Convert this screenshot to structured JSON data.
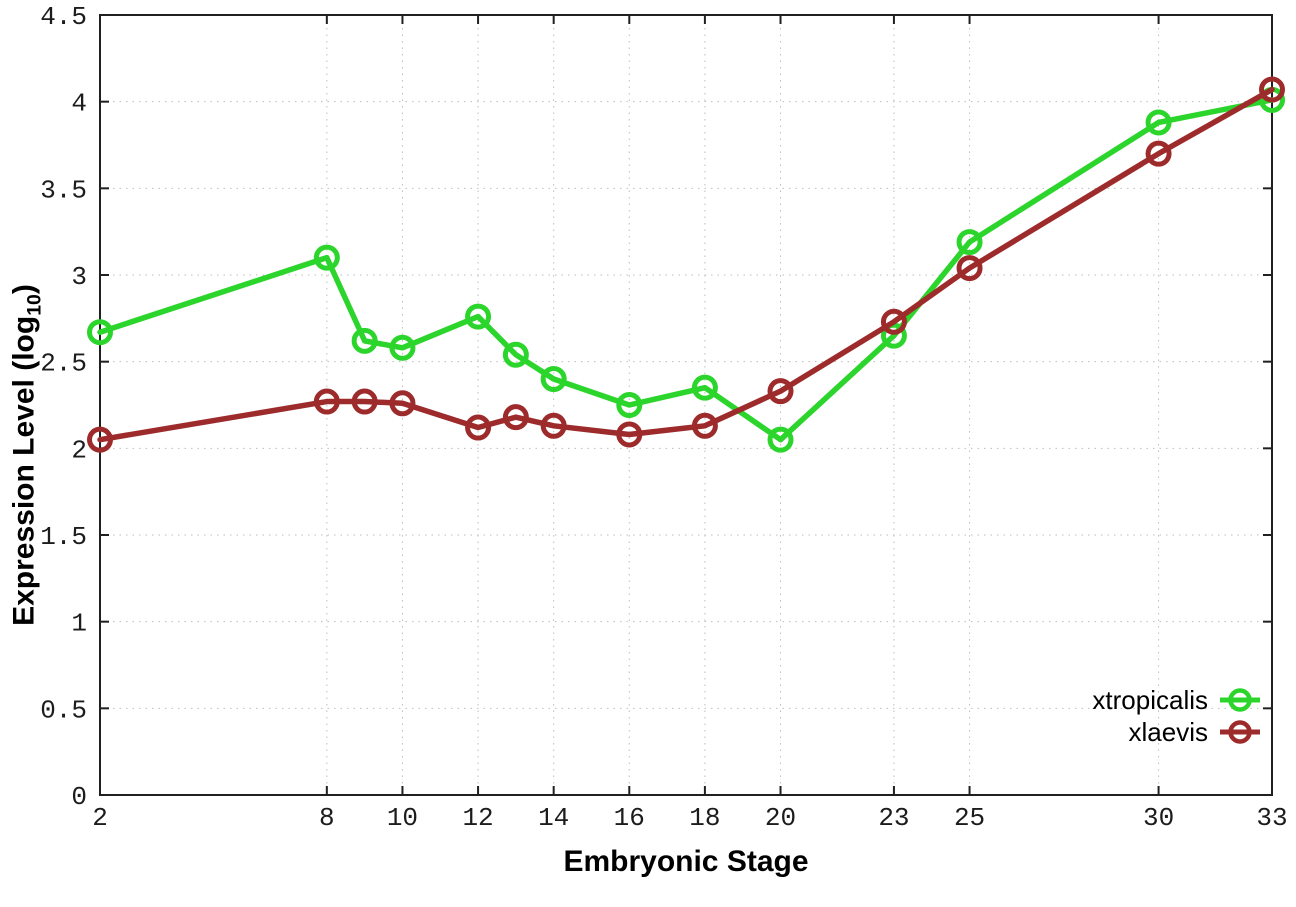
{
  "chart_data": {
    "type": "line",
    "title": "",
    "xlabel": "Embryonic Stage",
    "ylabel_prefix": "Expression Level (log",
    "ylabel_sub": "10",
    "ylabel_suffix": ")",
    "x": [
      2,
      8,
      9,
      10,
      12,
      13,
      14,
      16,
      18,
      20,
      23,
      25,
      30,
      33
    ],
    "xticks": [
      2,
      8,
      10,
      12,
      14,
      16,
      18,
      20,
      23,
      25,
      30,
      33
    ],
    "yticks": [
      0,
      0.5,
      1,
      1.5,
      2,
      2.5,
      3,
      3.5,
      4,
      4.5
    ],
    "xlim": [
      2,
      33
    ],
    "ylim": [
      0,
      4.5
    ],
    "grid": true,
    "legend_position": "bottom-right",
    "series": [
      {
        "name": "xtropicalis",
        "color": "#2bd52b",
        "marker": "open-circle",
        "values": [
          2.67,
          3.1,
          2.62,
          2.58,
          2.76,
          2.54,
          2.4,
          2.25,
          2.35,
          2.05,
          2.65,
          3.19,
          3.88,
          4.01
        ]
      },
      {
        "name": "xlaevis",
        "color": "#9e2b2b",
        "marker": "open-circle",
        "values": [
          2.05,
          2.27,
          2.27,
          2.26,
          2.12,
          2.18,
          2.13,
          2.08,
          2.13,
          2.33,
          2.73,
          3.04,
          3.7,
          4.07
        ]
      }
    ],
    "colors": {
      "grid": "#bdbdbd",
      "border": "#202020",
      "tick_label": "#1c1c1c"
    }
  }
}
